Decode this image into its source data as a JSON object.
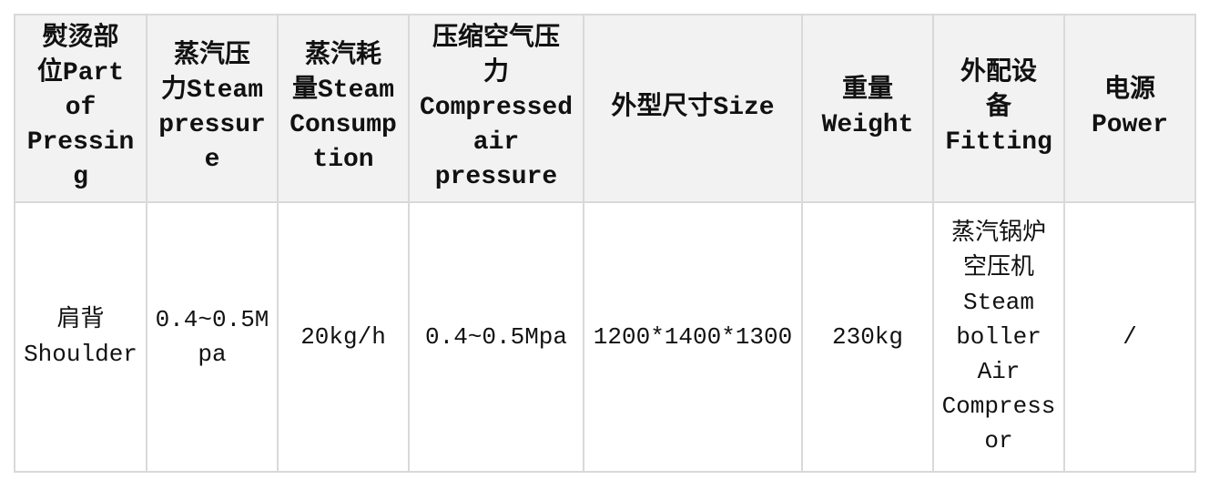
{
  "table": {
    "headers": [
      "熨烫部\n位Part\nof\nPressin\ng",
      "蒸汽压\n力Steam\npressur\ne",
      "蒸汽耗\n量Steam\nConsump\ntion",
      "压缩空气压\n力\nCompressed\nair\npressure",
      "外型尺寸Size",
      "重量\nWeight",
      "外配设\n备\nFitting",
      "电源\nPower"
    ],
    "rows": [
      [
        "肩背\nShoulder",
        "0.4~0.5M\npa",
        "20kg/h",
        "0.4~0.5Mpa",
        "1200*1400*1300",
        "230kg",
        "蒸汽锅炉\n空压机\nSteam\nboller\nAir\nCompress\nor",
        "/"
      ]
    ]
  }
}
